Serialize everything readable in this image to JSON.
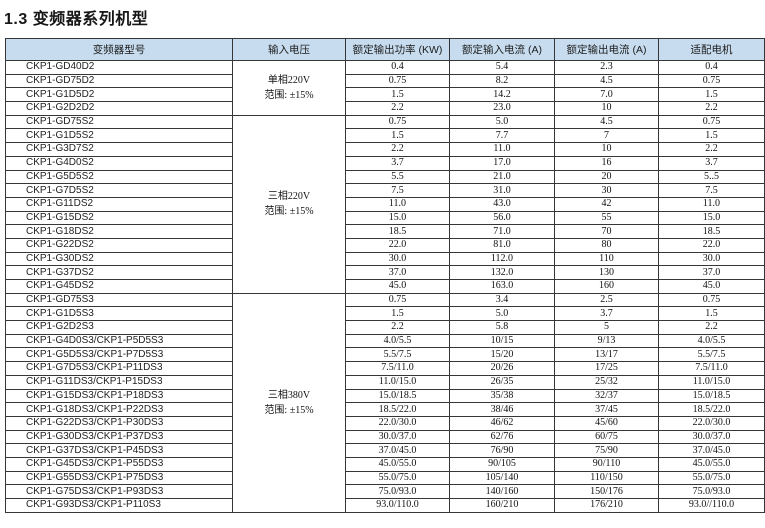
{
  "page": {
    "title": "1.3  变频器系列机型"
  },
  "table": {
    "headers": [
      "变频器型号",
      "输入电压",
      "额定输出功率 (KW)",
      "额定输入电流 (A)",
      "额定输出电流 (A)",
      "适配电机"
    ],
    "groups": [
      {
        "voltage": "单相220V",
        "range": "范围: ±15%",
        "rows": [
          [
            "CKP1-GD40D2",
            "0.4",
            "5.4",
            "2.3",
            "0.4"
          ],
          [
            "CKP1-GD75D2",
            "0.75",
            "8.2",
            "4.5",
            "0.75"
          ],
          [
            "CKP1-G1D5D2",
            "1.5",
            "14.2",
            "7.0",
            "1.5"
          ],
          [
            "CKP1-G2D2D2",
            "2.2",
            "23.0",
            "10",
            "2.2"
          ]
        ]
      },
      {
        "voltage": "三相220V",
        "range": "范围: ±15%",
        "rows": [
          [
            "CKP1-GD75S2",
            "0.75",
            "5.0",
            "4.5",
            "0.75"
          ],
          [
            "CKP1-G1D5S2",
            "1.5",
            "7.7",
            "7",
            "1.5"
          ],
          [
            "CKP1-G3D7S2",
            "2.2",
            "11.0",
            "10",
            "2.2"
          ],
          [
            "CKP1-G4D0S2",
            "3.7",
            "17.0",
            "16",
            "3.7"
          ],
          [
            "CKP1-G5D5S2",
            "5.5",
            "21.0",
            "20",
            "5..5"
          ],
          [
            "CKP1-G7D5S2",
            "7.5",
            "31.0",
            "30",
            "7.5"
          ],
          [
            "CKP1-G11DS2",
            "11.0",
            "43.0",
            "42",
            "11.0"
          ],
          [
            "CKP1-G15DS2",
            "15.0",
            "56.0",
            "55",
            "15.0"
          ],
          [
            "CKP1-G18DS2",
            "18.5",
            "71.0",
            "70",
            "18.5"
          ],
          [
            "CKP1-G22DS2",
            "22.0",
            "81.0",
            "80",
            "22.0"
          ],
          [
            "CKP1-G30DS2",
            "30.0",
            "112.0",
            "110",
            "30.0"
          ],
          [
            "CKP1-G37DS2",
            "37.0",
            "132.0",
            "130",
            "37.0"
          ],
          [
            "CKP1-G45DS2",
            "45.0",
            "163.0",
            "160",
            "45.0"
          ]
        ]
      },
      {
        "voltage": "三相380V",
        "range": "范围: ±15%",
        "rows": [
          [
            "CKP1-GD75S3",
            "0.75",
            "3.4",
            "2.5",
            "0.75"
          ],
          [
            "CKP1-G1D5S3",
            "1.5",
            "5.0",
            "3.7",
            "1.5"
          ],
          [
            "CKP1-G2D2S3",
            "2.2",
            "5.8",
            "5",
            "2.2"
          ],
          [
            "CKP1-G4D0S3/CKP1-P5D5S3",
            "4.0/5.5",
            "10/15",
            "9/13",
            "4.0/5.5"
          ],
          [
            "CKP1-G5D5S3/CKP1-P7D5S3",
            "5.5/7.5",
            "15/20",
            "13/17",
            "5.5/7.5"
          ],
          [
            "CKP1-G7D5S3/CKP1-P11DS3",
            "7.5/11.0",
            "20/26",
            "17/25",
            "7.5/11.0"
          ],
          [
            "CKP1-G11DS3/CKP1-P15DS3",
            "11.0/15.0",
            "26/35",
            "25/32",
            "11.0/15.0"
          ],
          [
            "CKP1-G15DS3/CKP1-P18DS3",
            "15.0/18.5",
            "35/38",
            "32/37",
            "15.0/18.5"
          ],
          [
            "CKP1-G18DS3/CKP1-P22DS3",
            "18.5/22.0",
            "38/46",
            "37/45",
            "18.5/22.0"
          ],
          [
            "CKP1-G22DS3/CKP1-P30DS3",
            "22.0/30.0",
            "46/62",
            "45/60",
            "22.0/30.0"
          ],
          [
            "CKP1-G30DS3/CKP1-P37DS3",
            "30.0/37.0",
            "62/76",
            "60/75",
            "30.0/37.0"
          ],
          [
            "CKP1-G37DS3/CKP1-P45DS3",
            "37.0/45.0",
            "76/90",
            "75/90",
            "37.0/45.0"
          ],
          [
            "CKP1-G45DS3/CKP1-P55DS3",
            "45.0/55.0",
            "90/105",
            "90/110",
            "45.0/55.0"
          ],
          [
            "CKP1-G55DS3/CKP1-P75DS3",
            "55.0/75.0",
            "105/140",
            "110/150",
            "55.0/75.0"
          ],
          [
            "CKP1-G75DS3/CKP1-P93DS3",
            "75.0/93.0",
            "140/160",
            "150/176",
            "75.0/93.0"
          ],
          [
            "CKP1-G93DS3/CKP1-P110S3",
            "93.0/110.0",
            "160/210",
            "176/210",
            "93.0//110.0"
          ]
        ]
      }
    ]
  }
}
